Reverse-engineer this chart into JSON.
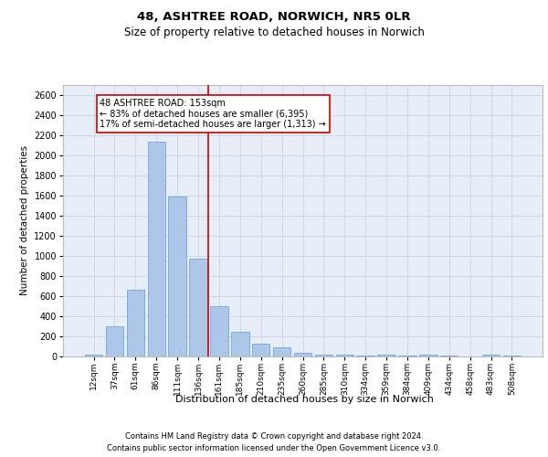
{
  "title_line1": "48, ASHTREE ROAD, NORWICH, NR5 0LR",
  "title_line2": "Size of property relative to detached houses in Norwich",
  "xlabel": "Distribution of detached houses by size in Norwich",
  "ylabel": "Number of detached properties",
  "categories": [
    "12sqm",
    "37sqm",
    "61sqm",
    "86sqm",
    "111sqm",
    "136sqm",
    "161sqm",
    "185sqm",
    "210sqm",
    "235sqm",
    "260sqm",
    "285sqm",
    "310sqm",
    "334sqm",
    "359sqm",
    "384sqm",
    "409sqm",
    "434sqm",
    "458sqm",
    "483sqm",
    "508sqm"
  ],
  "values": [
    20,
    300,
    660,
    2130,
    1590,
    975,
    500,
    245,
    125,
    95,
    35,
    15,
    20,
    10,
    15,
    10,
    20,
    5,
    0,
    20,
    5
  ],
  "bar_color": "#aec6e8",
  "bar_edge_color": "#5a9fd4",
  "vline_color": "#cc0000",
  "annotation_text": "48 ASHTREE ROAD: 153sqm\n← 83% of detached houses are smaller (6,395)\n17% of semi-detached houses are larger (1,313) →",
  "annotation_box_color": "#cc0000",
  "ylim": [
    0,
    2700
  ],
  "yticks": [
    0,
    200,
    400,
    600,
    800,
    1000,
    1200,
    1400,
    1600,
    1800,
    2000,
    2200,
    2400,
    2600
  ],
  "footer_line1": "Contains HM Land Registry data © Crown copyright and database right 2024.",
  "footer_line2": "Contains public sector information licensed under the Open Government Licence v3.0.",
  "grid_color": "#d0d8e8",
  "background_color": "#e8eef8"
}
